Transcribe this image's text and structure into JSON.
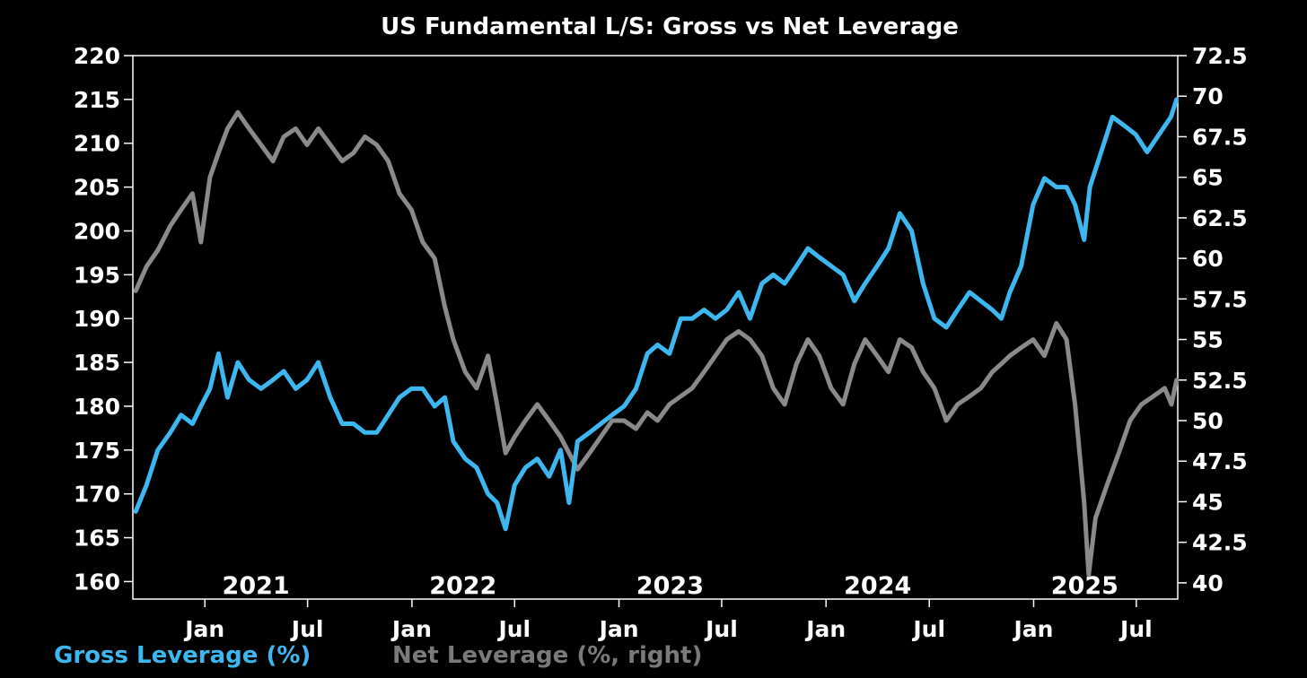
{
  "chart_data": {
    "type": "line",
    "title": "US Fundamental L/S: Gross vs Net Leverage",
    "x_axis": {
      "month_ticks": [
        {
          "date": "2021-01-01",
          "label": "Jan"
        },
        {
          "date": "2021-07-01",
          "label": "Jul"
        },
        {
          "date": "2022-01-01",
          "label": "Jan"
        },
        {
          "date": "2022-07-01",
          "label": "Jul"
        },
        {
          "date": "2023-01-01",
          "label": "Jan"
        },
        {
          "date": "2023-07-01",
          "label": "Jul"
        },
        {
          "date": "2024-01-01",
          "label": "Jan"
        },
        {
          "date": "2024-07-01",
          "label": "Jul"
        },
        {
          "date": "2025-01-01",
          "label": "Jan"
        },
        {
          "date": "2025-07-01",
          "label": "Jul"
        }
      ],
      "year_labels": [
        {
          "date": "2021-04-01",
          "label": "2021"
        },
        {
          "date": "2022-04-01",
          "label": "2022"
        },
        {
          "date": "2023-04-01",
          "label": "2023"
        },
        {
          "date": "2024-04-01",
          "label": "2024"
        },
        {
          "date": "2025-04-01",
          "label": "2025"
        }
      ],
      "range": [
        "2020-08-27",
        "2025-09-12"
      ]
    },
    "y_left": {
      "range": [
        158,
        220
      ],
      "ticks": [
        160,
        165,
        170,
        175,
        180,
        185,
        190,
        195,
        200,
        205,
        210,
        215,
        220
      ]
    },
    "y_right": {
      "range": [
        39.0,
        72.5
      ],
      "ticks": [
        "40",
        "42.5",
        "45",
        "47.5",
        "50",
        "52.5",
        "55",
        "57.5",
        "60",
        "62.5",
        "65",
        "67.5",
        "70",
        "72.5"
      ]
    },
    "colors": {
      "gross": "#3db7f0",
      "net": "#8a8a8a",
      "axis": "#ffffff",
      "background": "#000000"
    },
    "series": [
      {
        "name": "Gross Leverage (%)",
        "axis": "left",
        "points": [
          [
            "2020-09-01",
            168
          ],
          [
            "2020-09-20",
            171
          ],
          [
            "2020-10-10",
            175
          ],
          [
            "2020-11-01",
            177
          ],
          [
            "2020-11-20",
            179
          ],
          [
            "2020-12-10",
            178
          ],
          [
            "2020-12-25",
            180
          ],
          [
            "2021-01-10",
            182
          ],
          [
            "2021-01-25",
            186
          ],
          [
            "2021-02-10",
            181
          ],
          [
            "2021-02-28",
            185
          ],
          [
            "2021-03-20",
            183
          ],
          [
            "2021-04-10",
            182
          ],
          [
            "2021-05-01",
            183
          ],
          [
            "2021-05-20",
            184
          ],
          [
            "2021-06-10",
            182
          ],
          [
            "2021-06-30",
            183
          ],
          [
            "2021-07-20",
            185
          ],
          [
            "2021-08-10",
            181
          ],
          [
            "2021-08-31",
            178
          ],
          [
            "2021-09-20",
            178
          ],
          [
            "2021-10-10",
            177
          ],
          [
            "2021-10-31",
            177
          ],
          [
            "2021-11-20",
            179
          ],
          [
            "2021-12-10",
            181
          ],
          [
            "2021-12-31",
            182
          ],
          [
            "2022-01-20",
            182
          ],
          [
            "2022-02-10",
            180
          ],
          [
            "2022-02-28",
            181
          ],
          [
            "2022-03-15",
            176
          ],
          [
            "2022-04-05",
            174
          ],
          [
            "2022-04-25",
            173
          ],
          [
            "2022-05-15",
            170
          ],
          [
            "2022-05-31",
            169
          ],
          [
            "2022-06-15",
            166
          ],
          [
            "2022-07-01",
            171
          ],
          [
            "2022-07-20",
            173
          ],
          [
            "2022-08-10",
            174
          ],
          [
            "2022-08-31",
            172
          ],
          [
            "2022-09-20",
            175
          ],
          [
            "2022-10-05",
            169
          ],
          [
            "2022-10-20",
            176
          ],
          [
            "2022-11-10",
            177
          ],
          [
            "2022-11-30",
            178
          ],
          [
            "2022-12-20",
            179
          ],
          [
            "2023-01-10",
            180
          ],
          [
            "2023-01-31",
            182
          ],
          [
            "2023-02-20",
            186
          ],
          [
            "2023-03-10",
            187
          ],
          [
            "2023-03-31",
            186
          ],
          [
            "2023-04-20",
            190
          ],
          [
            "2023-05-10",
            190
          ],
          [
            "2023-05-31",
            191
          ],
          [
            "2023-06-20",
            190
          ],
          [
            "2023-07-10",
            191
          ],
          [
            "2023-07-31",
            193
          ],
          [
            "2023-08-20",
            190
          ],
          [
            "2023-09-10",
            194
          ],
          [
            "2023-09-30",
            195
          ],
          [
            "2023-10-20",
            194
          ],
          [
            "2023-11-10",
            196
          ],
          [
            "2023-11-30",
            198
          ],
          [
            "2023-12-20",
            197
          ],
          [
            "2024-01-10",
            196
          ],
          [
            "2024-01-31",
            195
          ],
          [
            "2024-02-20",
            192
          ],
          [
            "2024-03-10",
            194
          ],
          [
            "2024-03-31",
            196
          ],
          [
            "2024-04-20",
            198
          ],
          [
            "2024-05-10",
            202
          ],
          [
            "2024-05-31",
            200
          ],
          [
            "2024-06-20",
            194
          ],
          [
            "2024-07-10",
            190
          ],
          [
            "2024-07-31",
            189
          ],
          [
            "2024-08-20",
            191
          ],
          [
            "2024-09-10",
            193
          ],
          [
            "2024-09-30",
            192
          ],
          [
            "2024-10-20",
            191
          ],
          [
            "2024-11-05",
            190
          ],
          [
            "2024-11-20",
            193
          ],
          [
            "2024-12-10",
            196
          ],
          [
            "2024-12-31",
            203
          ],
          [
            "2025-01-20",
            206
          ],
          [
            "2025-02-10",
            205
          ],
          [
            "2025-02-28",
            205
          ],
          [
            "2025-03-15",
            203
          ],
          [
            "2025-03-31",
            199
          ],
          [
            "2025-04-10",
            205
          ],
          [
            "2025-04-30",
            209
          ],
          [
            "2025-05-20",
            213
          ],
          [
            "2025-06-10",
            212
          ],
          [
            "2025-06-30",
            211
          ],
          [
            "2025-07-20",
            209
          ],
          [
            "2025-08-10",
            211
          ],
          [
            "2025-08-31",
            213
          ],
          [
            "2025-09-10",
            215
          ]
        ]
      },
      {
        "name": "Net Leverage (%, right)",
        "axis": "right",
        "points": [
          [
            "2020-09-01",
            58
          ],
          [
            "2020-09-20",
            59.5
          ],
          [
            "2020-10-10",
            60.5
          ],
          [
            "2020-11-01",
            62
          ],
          [
            "2020-11-20",
            63
          ],
          [
            "2020-12-10",
            64
          ],
          [
            "2020-12-25",
            61
          ],
          [
            "2021-01-10",
            65
          ],
          [
            "2021-01-25",
            66.5
          ],
          [
            "2021-02-10",
            68
          ],
          [
            "2021-02-28",
            69
          ],
          [
            "2021-03-20",
            68
          ],
          [
            "2021-04-10",
            67
          ],
          [
            "2021-05-01",
            66
          ],
          [
            "2021-05-20",
            67.5
          ],
          [
            "2021-06-10",
            68
          ],
          [
            "2021-06-30",
            67
          ],
          [
            "2021-07-20",
            68
          ],
          [
            "2021-08-10",
            67
          ],
          [
            "2021-08-31",
            66
          ],
          [
            "2021-09-20",
            66.5
          ],
          [
            "2021-10-10",
            67.5
          ],
          [
            "2021-10-31",
            67
          ],
          [
            "2021-11-20",
            66
          ],
          [
            "2021-12-10",
            64
          ],
          [
            "2021-12-31",
            63
          ],
          [
            "2022-01-20",
            61
          ],
          [
            "2022-02-10",
            60
          ],
          [
            "2022-02-28",
            57
          ],
          [
            "2022-03-15",
            55
          ],
          [
            "2022-04-05",
            53
          ],
          [
            "2022-04-25",
            52
          ],
          [
            "2022-05-15",
            54
          ],
          [
            "2022-05-31",
            51
          ],
          [
            "2022-06-15",
            48
          ],
          [
            "2022-07-01",
            49
          ],
          [
            "2022-07-20",
            50
          ],
          [
            "2022-08-10",
            51
          ],
          [
            "2022-08-31",
            50
          ],
          [
            "2022-09-20",
            49
          ],
          [
            "2022-10-05",
            48
          ],
          [
            "2022-10-20",
            47
          ],
          [
            "2022-11-10",
            48
          ],
          [
            "2022-11-30",
            49
          ],
          [
            "2022-12-20",
            50
          ],
          [
            "2023-01-10",
            50
          ],
          [
            "2023-01-31",
            49.5
          ],
          [
            "2023-02-20",
            50.5
          ],
          [
            "2023-03-10",
            50
          ],
          [
            "2023-03-31",
            51
          ],
          [
            "2023-04-20",
            51.5
          ],
          [
            "2023-05-10",
            52
          ],
          [
            "2023-05-31",
            53
          ],
          [
            "2023-06-20",
            54
          ],
          [
            "2023-07-10",
            55
          ],
          [
            "2023-07-31",
            55.5
          ],
          [
            "2023-08-20",
            55
          ],
          [
            "2023-09-10",
            54
          ],
          [
            "2023-09-30",
            52
          ],
          [
            "2023-10-20",
            51
          ],
          [
            "2023-11-10",
            53.5
          ],
          [
            "2023-11-30",
            55
          ],
          [
            "2023-12-20",
            54
          ],
          [
            "2024-01-10",
            52
          ],
          [
            "2024-01-31",
            51
          ],
          [
            "2024-02-20",
            53.5
          ],
          [
            "2024-03-10",
            55
          ],
          [
            "2024-03-31",
            54
          ],
          [
            "2024-04-20",
            53
          ],
          [
            "2024-05-10",
            55
          ],
          [
            "2024-05-31",
            54.5
          ],
          [
            "2024-06-20",
            53
          ],
          [
            "2024-07-10",
            52
          ],
          [
            "2024-07-31",
            50
          ],
          [
            "2024-08-20",
            51
          ],
          [
            "2024-09-10",
            51.5
          ],
          [
            "2024-09-30",
            52
          ],
          [
            "2024-10-20",
            53
          ],
          [
            "2024-11-05",
            53.5
          ],
          [
            "2024-11-20",
            54
          ],
          [
            "2024-12-10",
            54.5
          ],
          [
            "2024-12-31",
            55
          ],
          [
            "2025-01-20",
            54
          ],
          [
            "2025-02-10",
            56
          ],
          [
            "2025-02-28",
            55
          ],
          [
            "2025-03-15",
            51
          ],
          [
            "2025-03-31",
            45
          ],
          [
            "2025-04-08",
            40.5
          ],
          [
            "2025-04-20",
            44
          ],
          [
            "2025-05-10",
            46
          ],
          [
            "2025-05-31",
            48
          ],
          [
            "2025-06-20",
            50
          ],
          [
            "2025-07-10",
            51
          ],
          [
            "2025-07-31",
            51.5
          ],
          [
            "2025-08-20",
            52
          ],
          [
            "2025-09-01",
            51
          ],
          [
            "2025-09-10",
            52.5
          ]
        ]
      }
    ]
  },
  "legend": {
    "gross_label": "Gross Leverage (%)",
    "net_label": "Net Leverage (%, right)"
  }
}
